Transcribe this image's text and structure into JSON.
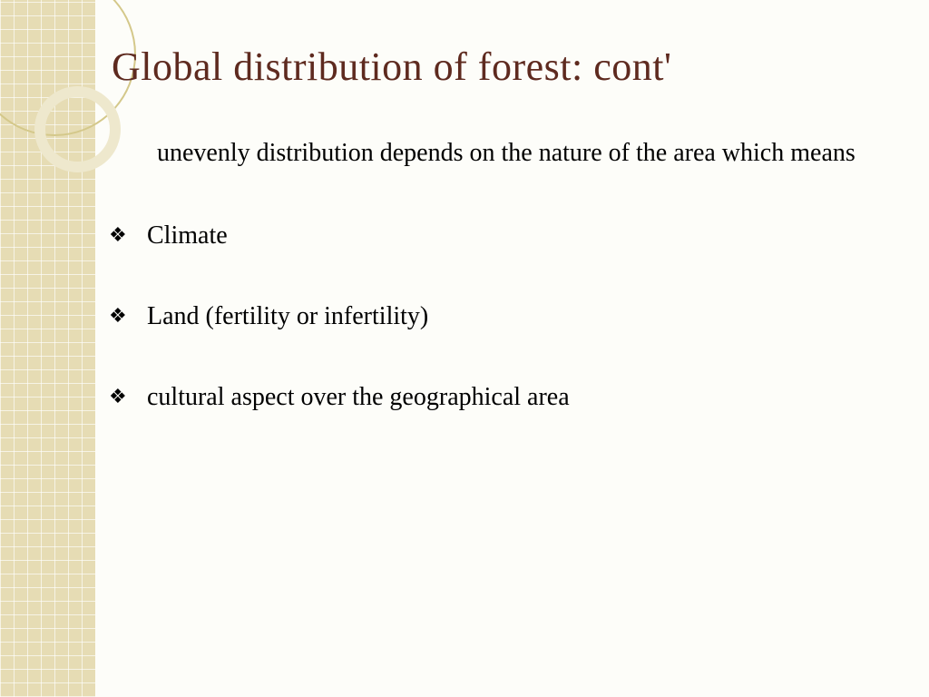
{
  "slide": {
    "title": "Global distribution of forest: cont'",
    "intro": "unevenly distribution depends on the nature of the area which means",
    "bullets": [
      "Climate",
      "Land (fertility or infertility)",
      "cultural aspect over the geographical area"
    ]
  },
  "style": {
    "title_color": "#5e2a1f",
    "title_fontsize": 44,
    "body_color": "#000000",
    "body_fontsize": 28,
    "sidebar_color": "#e6dcb4",
    "grid_line_color": "rgba(255,255,255,0.65)",
    "circle_thin_color": "#d4c88a",
    "circle_thick_color": "#eee8cd",
    "background_color": "#fdfdf9",
    "bullet_glyph": "❖"
  }
}
